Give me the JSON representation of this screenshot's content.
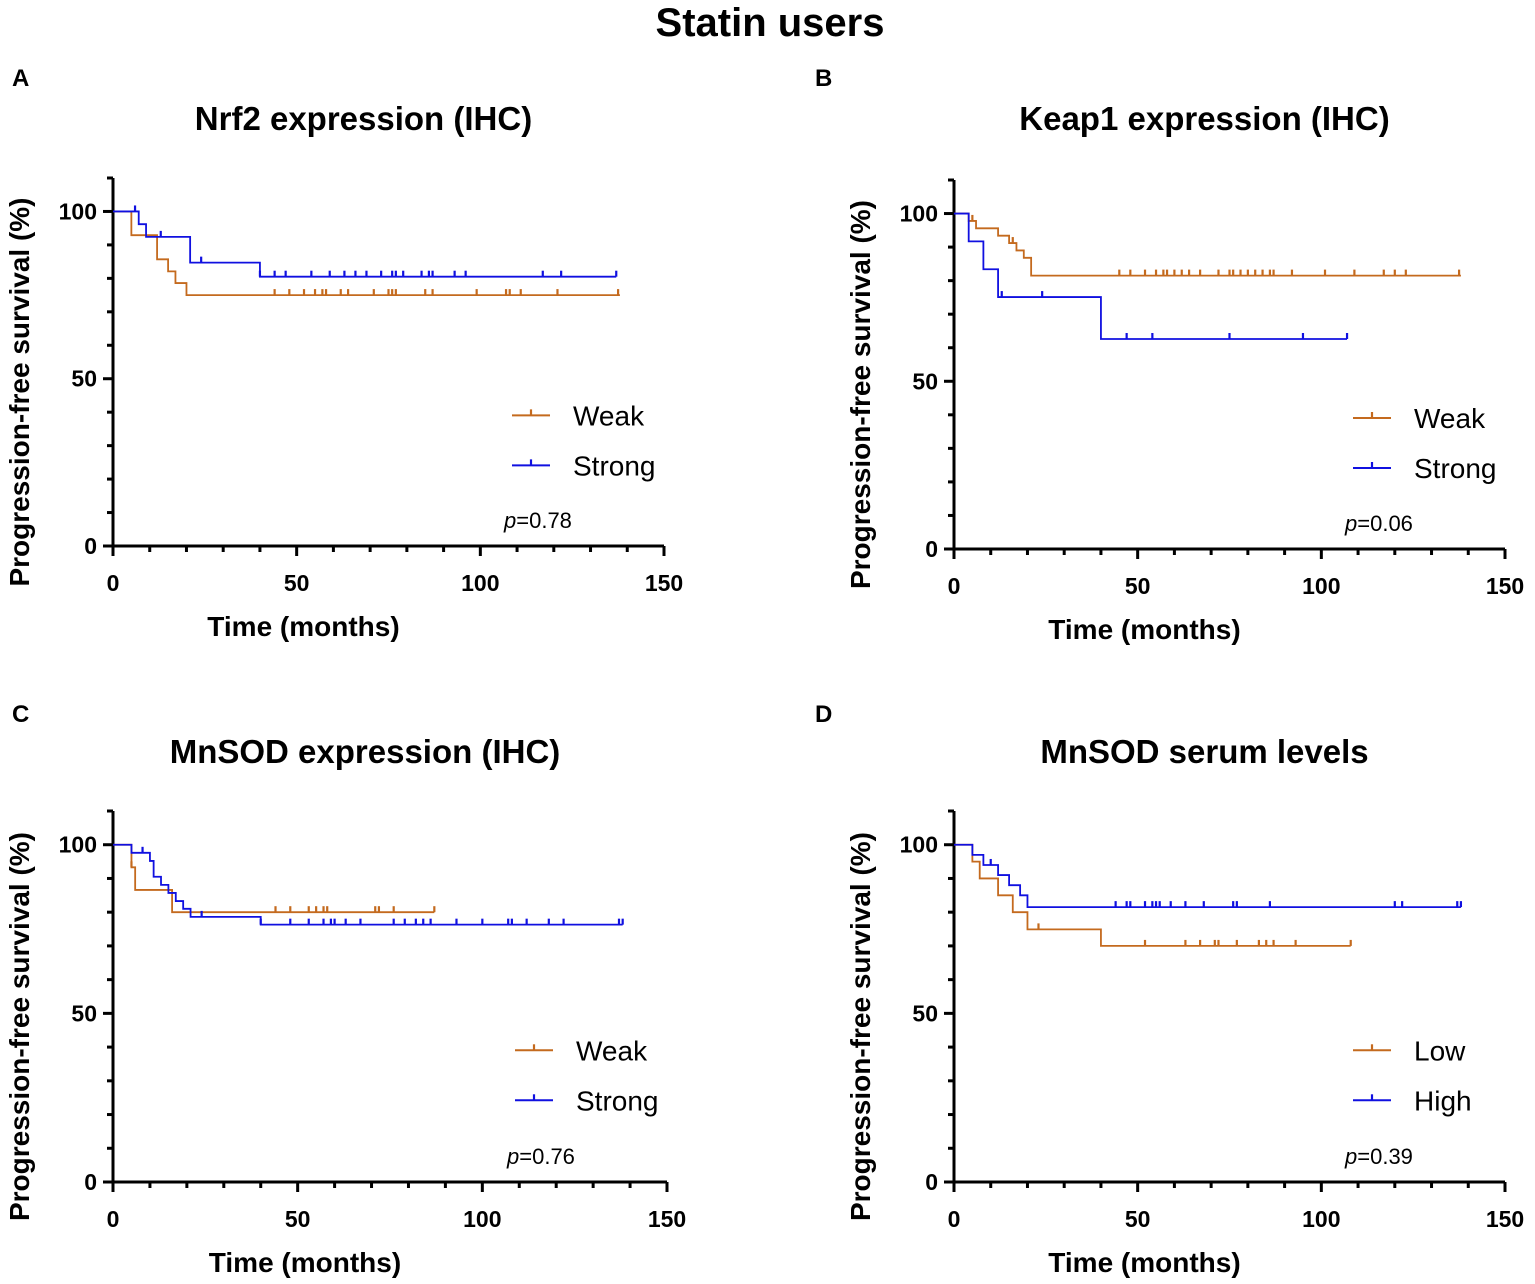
{
  "figure": {
    "title": "Statin users"
  },
  "chart_data": [
    {
      "panel": "A",
      "type": "line",
      "subtype": "kaplan-meier step",
      "title": "Nrf2 expression (IHC)",
      "xlabel": "Time (months)",
      "ylabel": "Progression-free survival (%)",
      "xlim": [
        0,
        150
      ],
      "ylim": [
        0,
        110
      ],
      "xticks": [
        0,
        50,
        100,
        150
      ],
      "yticks": [
        0,
        50,
        100
      ],
      "legend_position": "right",
      "pvalue": {
        "prefix": "p",
        "text": "=0.78"
      },
      "series": [
        {
          "name": "Weak",
          "color": "#c46a1e",
          "steps": [
            [
              0,
              100
            ],
            [
              5,
              92.9
            ],
            [
              12,
              85.7
            ],
            [
              15,
              82.1
            ],
            [
              17,
              78.6
            ],
            [
              20,
              75.0
            ]
          ],
          "end": 138,
          "censored": [
            44,
            48,
            52,
            55,
            57,
            58,
            62,
            64,
            71,
            75,
            76,
            77,
            85,
            87,
            99,
            107,
            108,
            111,
            121,
            137.5
          ]
        },
        {
          "name": "Strong",
          "color": "#1010e0",
          "steps": [
            [
              0,
              100
            ],
            [
              7,
              96.2
            ],
            [
              9,
              92.4
            ],
            [
              21,
              84.7
            ],
            [
              40,
              80.5
            ]
          ],
          "end": 137,
          "censored": [
            6,
            13,
            24,
            40,
            44,
            47,
            54,
            59,
            63,
            66,
            69,
            73,
            76,
            77,
            79,
            84,
            86,
            87,
            93,
            96,
            117,
            122,
            137
          ]
        }
      ]
    },
    {
      "panel": "B",
      "type": "line",
      "subtype": "kaplan-meier step",
      "title": "Keap1 expression (IHC)",
      "xlabel": "Time (months)",
      "ylabel": "Progression-free survival (%)",
      "xlim": [
        0,
        150
      ],
      "ylim": [
        0,
        110
      ],
      "xticks": [
        0,
        50,
        100,
        150
      ],
      "yticks": [
        0,
        50,
        100
      ],
      "legend_position": "right",
      "pvalue": {
        "prefix": "p",
        "text": "=0.06"
      },
      "series": [
        {
          "name": "Weak",
          "color": "#c46a1e",
          "steps": [
            [
              0,
              100
            ],
            [
              4,
              97.8
            ],
            [
              6,
              95.6
            ],
            [
              12,
              93.4
            ],
            [
              15,
              91.2
            ],
            [
              17,
              89.0
            ],
            [
              19,
              86.8
            ],
            [
              21,
              81.5
            ]
          ],
          "end": 138,
          "censored": [
            5,
            16,
            45,
            48,
            52,
            55,
            57,
            58,
            60,
            62,
            64,
            67,
            72,
            75,
            76,
            78,
            80,
            82,
            84,
            86,
            87,
            92,
            101,
            109,
            117,
            120,
            123,
            137.5
          ]
        },
        {
          "name": "Strong",
          "color": "#1010e0",
          "steps": [
            [
              0,
              100
            ],
            [
              4,
              91.7
            ],
            [
              8,
              83.4
            ],
            [
              12,
              75.1
            ],
            [
              40,
              62.6
            ]
          ],
          "end": 107,
          "censored": [
            13,
            24,
            47,
            54,
            75,
            95,
            107
          ]
        }
      ]
    },
    {
      "panel": "C",
      "type": "line",
      "subtype": "kaplan-meier step",
      "title": "MnSOD expression (IHC)",
      "xlabel": "Time (months)",
      "ylabel": "Progression-free survival (%)",
      "xlim": [
        0,
        150
      ],
      "ylim": [
        0,
        110
      ],
      "xticks": [
        0,
        50,
        100,
        150
      ],
      "yticks": [
        0,
        50,
        100
      ],
      "legend_position": "right",
      "pvalue": {
        "prefix": "p",
        "text": "=0.76"
      },
      "series": [
        {
          "name": "Weak",
          "color": "#c46a1e",
          "steps": [
            [
              0,
              100
            ],
            [
              5,
              93.3
            ],
            [
              6,
              86.6
            ],
            [
              16,
              80.0
            ]
          ],
          "end": 87,
          "censored": [
            5,
            44,
            48,
            53,
            55,
            57,
            58,
            71,
            72,
            76,
            87
          ]
        },
        {
          "name": "Strong",
          "color": "#1010e0",
          "steps": [
            [
              0,
              100
            ],
            [
              5,
              97.6
            ],
            [
              10,
              95.2
            ],
            [
              11,
              90.5
            ],
            [
              13,
              88.1
            ],
            [
              15,
              85.7
            ],
            [
              17,
              83.3
            ],
            [
              19,
              81.0
            ],
            [
              21,
              78.6
            ],
            [
              40,
              76.3
            ]
          ],
          "end": 138,
          "censored": [
            8,
            24,
            40,
            48,
            53,
            57,
            59,
            60,
            63,
            67,
            76,
            79,
            82,
            84,
            86,
            93,
            100,
            107,
            108,
            112,
            118,
            122,
            137,
            138
          ]
        }
      ]
    },
    {
      "panel": "D",
      "type": "line",
      "subtype": "kaplan-meier step",
      "title": "MnSOD serum levels",
      "xlabel": "Time (months)",
      "ylabel": "Progression-free survival (%)",
      "xlim": [
        0,
        150
      ],
      "ylim": [
        0,
        110
      ],
      "xticks": [
        0,
        50,
        100,
        150
      ],
      "yticks": [
        0,
        50,
        100
      ],
      "legend_position": "right",
      "pvalue": {
        "prefix": "p",
        "text": "=0.39"
      },
      "series": [
        {
          "name": "Low",
          "color": "#c46a1e",
          "steps": [
            [
              0,
              100
            ],
            [
              5,
              95.0
            ],
            [
              7,
              90.0
            ],
            [
              12,
              85.0
            ],
            [
              16,
              80.0
            ],
            [
              20,
              74.9
            ],
            [
              40,
              70.0
            ]
          ],
          "end": 108,
          "censored": [
            23,
            52,
            63,
            67,
            71,
            72,
            77,
            83,
            85,
            87,
            93,
            108
          ]
        },
        {
          "name": "High",
          "color": "#1010e0",
          "steps": [
            [
              0,
              100
            ],
            [
              5,
              97.0
            ],
            [
              8,
              94.0
            ],
            [
              12,
              91.0
            ],
            [
              15,
              88.0
            ],
            [
              18,
              85.0
            ],
            [
              20,
              81.5
            ]
          ],
          "end": 138,
          "censored": [
            10,
            44,
            47,
            48,
            52,
            54,
            55,
            56,
            59,
            63,
            68,
            76,
            77,
            86,
            120,
            122,
            137,
            138
          ]
        }
      ]
    }
  ]
}
